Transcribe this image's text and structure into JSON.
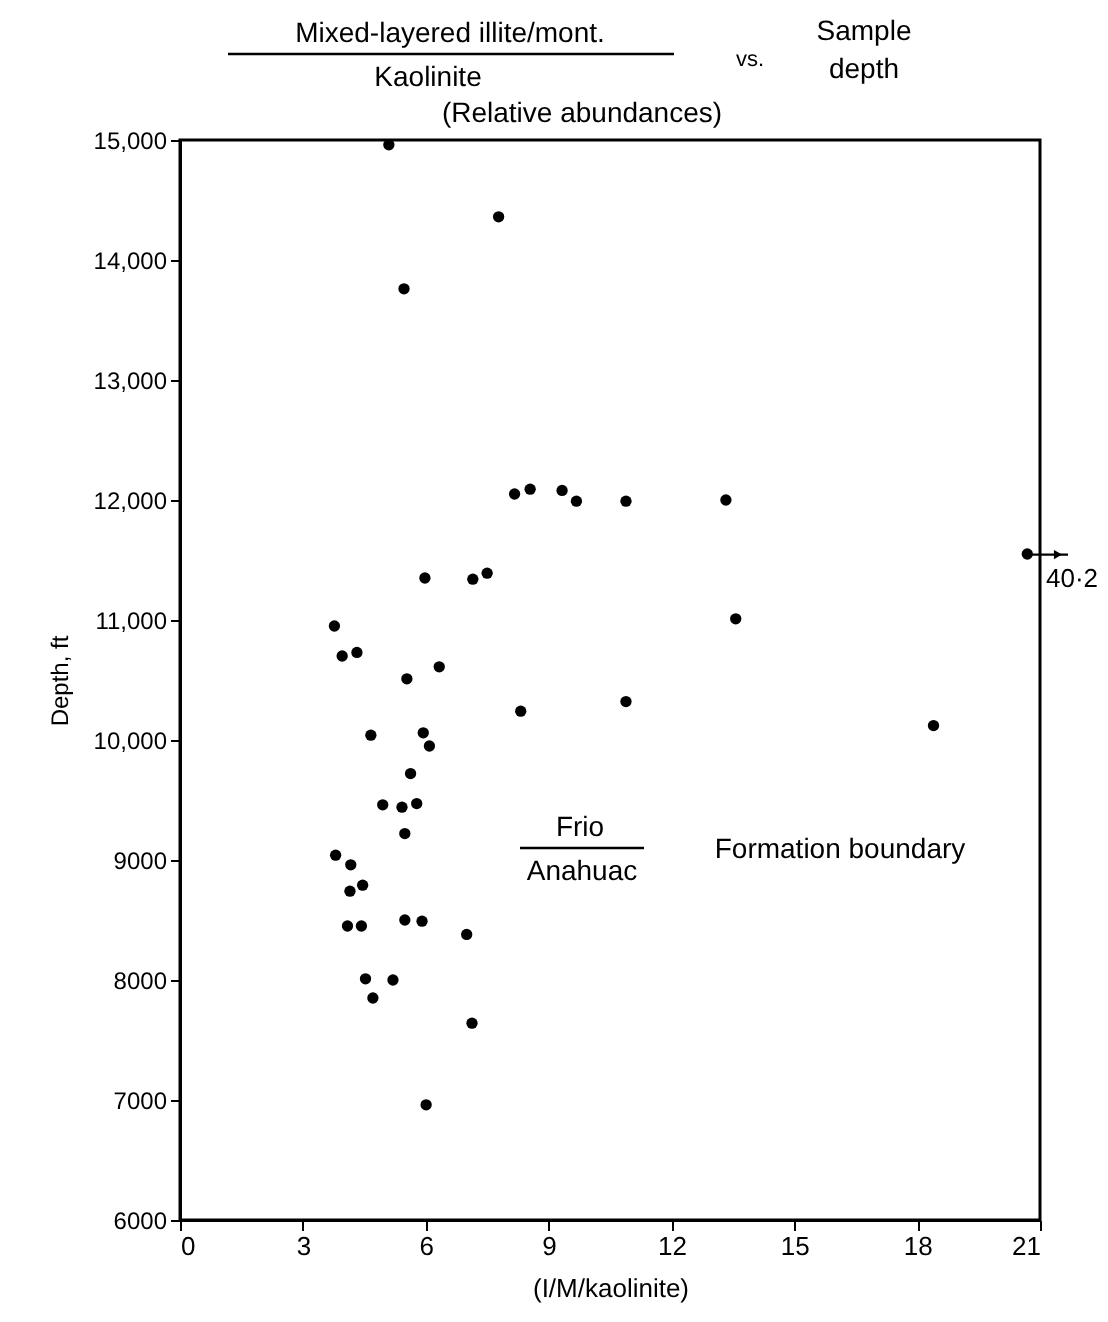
{
  "chart_data": {
    "type": "scatter",
    "xlabel": "(I/M/kaolinite)",
    "ylabel": "Depth, ft",
    "annotations": [
      "Mixed-layered illite/mont.",
      "Kaolinite",
      "(Relative abundances)",
      "vs.",
      "Sample depth",
      "Frio",
      "Anahuac",
      "Formation boundary",
      {
        "text": "40·2",
        "x": 21,
        "y": 11545
      }
    ],
    "x": [
      5.1,
      7.78,
      5.47,
      8.17,
      8.55,
      9.33,
      9.68,
      10.89,
      13.33,
      5.98,
      7.15,
      7.5,
      13.57,
      20.69,
      3.77,
      3.96,
      4.32,
      5.54,
      6.33,
      8.32,
      10.89,
      18.4,
      4.66,
      5.94,
      6.09,
      5.63,
      4.95,
      5.42,
      5.78,
      5.49,
      3.8,
      4.17,
      4.46,
      4.15,
      4.09,
      4.43,
      5.49,
      5.91,
      7.0,
      4.53,
      5.2,
      4.71,
      7.13,
      6.01
    ],
    "series": [
      {
        "color": "#000000",
        "values": [
          14960,
          14360,
          13760,
          12050,
          12090,
          12080,
          11990,
          11990,
          12000,
          11350,
          11340,
          11390,
          11010,
          11550,
          10950,
          10700,
          10730,
          10510,
          10610,
          10240,
          10320,
          10120,
          10040,
          10060,
          9950,
          9720,
          9460,
          9440,
          9470,
          9220,
          9040,
          8960,
          8790,
          8740,
          8450,
          8450,
          8500,
          8490,
          8380,
          8010,
          8000,
          7850,
          7640,
          6960
        ]
      }
    ],
    "xlim": [
      0,
      21
    ],
    "xticks": [
      0,
      3,
      6,
      9,
      12,
      15,
      18,
      21
    ],
    "ylim": [
      6000,
      15000
    ],
    "yticks": [
      6000,
      7000,
      8000,
      9000,
      {
        "value": 10000,
        "label": "10,000"
      },
      {
        "value": 11000,
        "label": "11,000"
      },
      {
        "value": 12000,
        "label": "12,000"
      },
      {
        "value": 13000,
        "label": "13,000"
      },
      {
        "value": 14000,
        "label": "14,000"
      },
      {
        "value": 15000,
        "label": "15,000"
      }
    ],
    "grid": false,
    "marker": "circle"
  }
}
